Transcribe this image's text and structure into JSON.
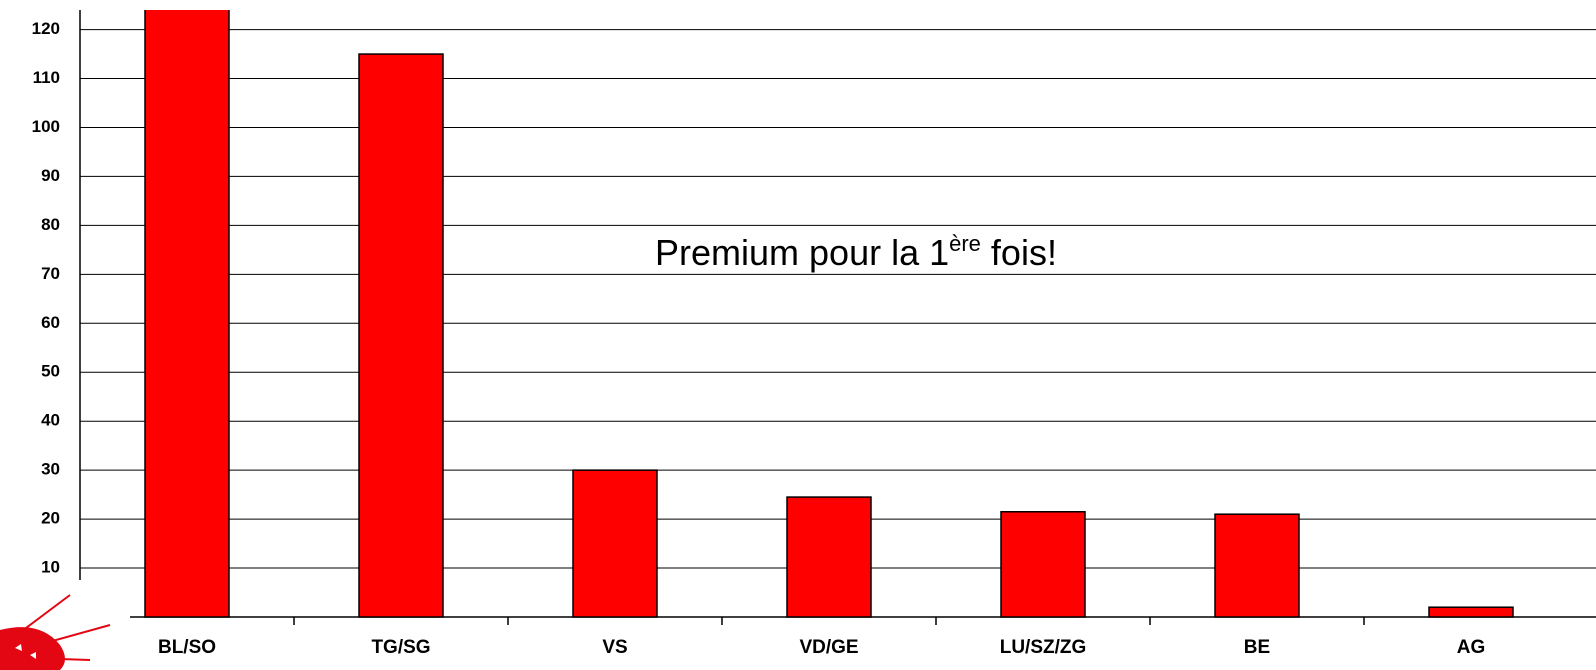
{
  "chart_data": {
    "type": "bar",
    "categories": [
      "BL/SO",
      "TG/SG",
      "VS",
      "VD/GE",
      "LU/SZ/ZG",
      "BE",
      "AG"
    ],
    "values": [
      125,
      115,
      30,
      24.5,
      21.5,
      21,
      2
    ],
    "color": "#ff0000",
    "ylim": [
      0,
      124
    ],
    "yticks": [
      10,
      20,
      30,
      40,
      50,
      60,
      70,
      80,
      90,
      100,
      110,
      120
    ],
    "grid": true,
    "annotation": [
      "Premium pour la 1",
      "ère",
      " fois!"
    ]
  }
}
